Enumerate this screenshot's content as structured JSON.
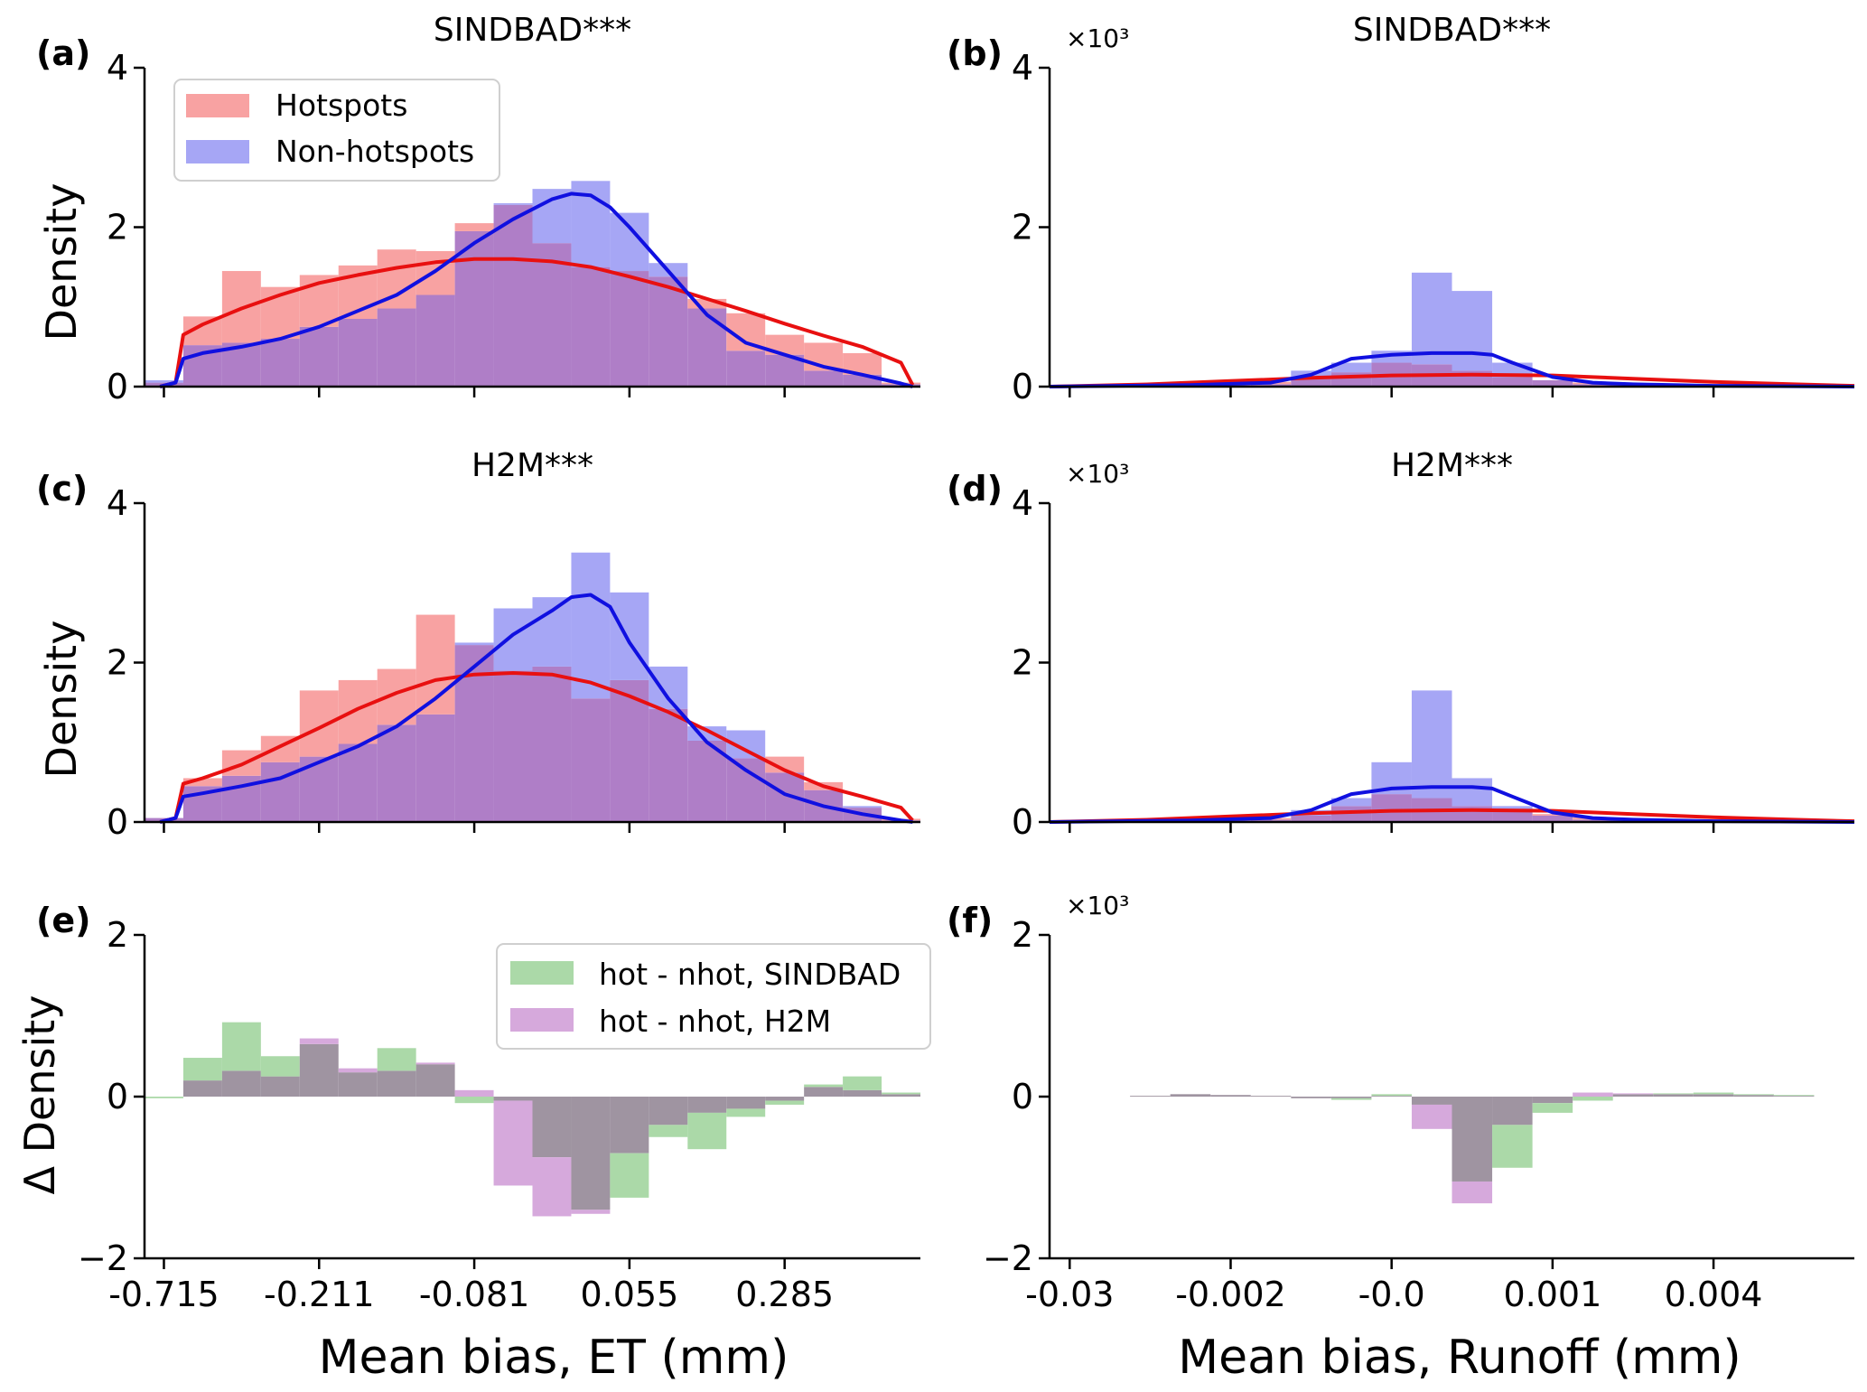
{
  "colors": {
    "hotspots": "#f8a2a2",
    "nonhotspots": "#a6a6f5",
    "overlap": "#af7ec7",
    "hot_line": "#e81010",
    "nonhot_line": "#1010e0",
    "diff_sindbad": "#abd9a8",
    "diff_h2m": "#d6a9dc",
    "diff_overlap": "#9f94a1"
  },
  "x_axis": {
    "et_ticks": [
      "-0.715",
      "-0.211",
      "-0.081",
      "0.055",
      "0.285"
    ],
    "runoff_ticks": [
      "-0.03",
      "-0.002",
      "-0.0",
      "0.001",
      "0.004"
    ],
    "et_label": "Mean bias, ET (mm)",
    "runoff_label": "Mean bias, Runoff (mm)"
  },
  "chart_data": [
    {
      "id": "a",
      "letter": "(a)",
      "title": "SINDBAD***",
      "type": "histogram+kde",
      "ylabel": "Density",
      "ylim": [
        0,
        4
      ],
      "yticks": [
        "0",
        "2",
        "4"
      ],
      "exponent": "",
      "xlim": [
        -0.5,
        19.5
      ],
      "xticks_at": [
        0,
        4,
        8,
        12,
        16
      ],
      "x_variable": "ET",
      "legend": [
        "Hotspots",
        "Non-hotspots"
      ],
      "bin_edges": [
        -0.5,
        0.5,
        1.5,
        2.5,
        3.5,
        4.5,
        5.5,
        6.5,
        7.5,
        8.5,
        9.5,
        10.5,
        11.5,
        12.5,
        13.5,
        14.5,
        15.5,
        16.5,
        17.5,
        18.5,
        19.5
      ],
      "series": [
        {
          "name": "Hotspots",
          "values": [
            0.05,
            0.88,
            1.45,
            1.25,
            1.4,
            1.52,
            1.72,
            1.7,
            2.05,
            2.28,
            1.8,
            1.5,
            1.45,
            1.38,
            1.1,
            0.92,
            0.65,
            0.55,
            0.42,
            0.05
          ]
        },
        {
          "name": "Non-hotspots",
          "values": [
            0.08,
            0.52,
            0.55,
            0.6,
            0.75,
            0.85,
            0.98,
            1.15,
            1.95,
            2.3,
            2.48,
            2.58,
            2.18,
            1.55,
            0.98,
            0.45,
            0.4,
            0.2,
            0.15,
            0.03
          ]
        }
      ],
      "kde": [
        {
          "name": "Hotspots",
          "x": [
            -0.1,
            0.3,
            0.5,
            1.0,
            2.0,
            3.0,
            4.0,
            5.0,
            6.0,
            7.0,
            8.0,
            9.0,
            10.0,
            11.0,
            12.0,
            13.0,
            14.0,
            15.0,
            16.0,
            17.0,
            18.0,
            19.0,
            19.3
          ],
          "y": [
            0.0,
            0.05,
            0.65,
            0.78,
            0.98,
            1.15,
            1.3,
            1.4,
            1.49,
            1.56,
            1.6,
            1.6,
            1.57,
            1.5,
            1.38,
            1.25,
            1.1,
            0.95,
            0.79,
            0.64,
            0.5,
            0.3,
            0.02
          ]
        },
        {
          "name": "Non-hotspots",
          "x": [
            -0.1,
            0.3,
            0.5,
            1.0,
            2.0,
            3.0,
            4.0,
            5.0,
            6.0,
            7.0,
            8.0,
            9.0,
            10.0,
            10.5,
            11.0,
            11.5,
            12.0,
            13.0,
            14.0,
            15.0,
            16.0,
            17.0,
            18.0,
            19.0,
            19.3
          ],
          "y": [
            0.0,
            0.05,
            0.35,
            0.42,
            0.5,
            0.6,
            0.75,
            0.95,
            1.15,
            1.45,
            1.8,
            2.1,
            2.35,
            2.42,
            2.4,
            2.25,
            2.0,
            1.45,
            0.9,
            0.55,
            0.4,
            0.25,
            0.15,
            0.04,
            0.0
          ]
        }
      ]
    },
    {
      "id": "b",
      "letter": "(b)",
      "title": "SINDBAD***",
      "type": "histogram+kde",
      "ylabel": "",
      "ylim": [
        0,
        4
      ],
      "yticks": [
        "0",
        "2",
        "4"
      ],
      "exponent": "×10³",
      "xlim": [
        -0.5,
        19.5
      ],
      "xticks_at": [
        0,
        4,
        8,
        12,
        16
      ],
      "x_variable": "Runoff",
      "legend": [],
      "bin_edges": [
        -0.5,
        0.5,
        1.5,
        2.5,
        3.5,
        4.5,
        5.5,
        6.5,
        7.5,
        8.5,
        9.5,
        10.5,
        11.5,
        12.5,
        13.5,
        14.5,
        15.5,
        16.5,
        17.5,
        18.5,
        19.5
      ],
      "series": [
        {
          "name": "Hotspots",
          "values": [
            0.005,
            0.015,
            0.02,
            0.03,
            0.04,
            0.06,
            0.1,
            0.18,
            0.3,
            0.28,
            0.2,
            0.12,
            0.08,
            0.05,
            0.035,
            0.025,
            0.015,
            0.01,
            0.005,
            0.002
          ]
        },
        {
          "name": "Non-hotspots",
          "values": [
            0.0,
            0.005,
            0.01,
            0.015,
            0.02,
            0.03,
            0.2,
            0.3,
            0.45,
            1.43,
            1.2,
            0.3,
            0.08,
            0.03,
            0.02,
            0.01,
            0.005,
            0.003,
            0.002,
            0.0
          ]
        }
      ],
      "kde": [
        {
          "name": "Hotspots",
          "x": [
            -0.5,
            2,
            4,
            6,
            8,
            10,
            12,
            14,
            16,
            18,
            19.5
          ],
          "y": [
            0.0,
            0.03,
            0.07,
            0.11,
            0.14,
            0.15,
            0.14,
            0.1,
            0.06,
            0.03,
            0.01
          ]
        },
        {
          "name": "Non-hotspots",
          "x": [
            -0.5,
            3,
            5,
            6,
            6.5,
            7,
            8,
            9,
            10,
            10.5,
            11,
            12,
            13,
            14,
            16,
            19.5
          ],
          "y": [
            0.0,
            0.02,
            0.05,
            0.15,
            0.25,
            0.35,
            0.4,
            0.42,
            0.42,
            0.4,
            0.3,
            0.12,
            0.05,
            0.03,
            0.01,
            0.0
          ]
        }
      ]
    },
    {
      "id": "c",
      "letter": "(c)",
      "title": "H2M***",
      "type": "histogram+kde",
      "ylabel": "Density",
      "ylim": [
        0,
        4
      ],
      "yticks": [
        "0",
        "2",
        "4"
      ],
      "exponent": "",
      "xlim": [
        -0.5,
        19.5
      ],
      "xticks_at": [
        0,
        4,
        8,
        12,
        16
      ],
      "x_variable": "ET",
      "legend": [],
      "bin_edges": [
        -0.5,
        0.5,
        1.5,
        2.5,
        3.5,
        4.5,
        5.5,
        6.5,
        7.5,
        8.5,
        9.5,
        10.5,
        11.5,
        12.5,
        13.5,
        14.5,
        15.5,
        16.5,
        17.5,
        18.5,
        19.5
      ],
      "series": [
        {
          "name": "Hotspots",
          "values": [
            0.05,
            0.55,
            0.9,
            1.08,
            1.65,
            1.78,
            1.92,
            2.6,
            2.22,
            1.9,
            1.95,
            1.55,
            1.78,
            1.42,
            1.02,
            0.8,
            0.82,
            0.5,
            0.18,
            0.04
          ]
        },
        {
          "name": "Non-hotspots",
          "values": [
            0.05,
            0.45,
            0.58,
            0.75,
            0.82,
            0.98,
            1.22,
            1.35,
            2.25,
            2.68,
            2.82,
            3.38,
            2.88,
            1.95,
            1.2,
            1.15,
            0.62,
            0.4,
            0.2,
            0.02
          ]
        }
      ],
      "kde": [
        {
          "name": "Hotspots",
          "x": [
            -0.1,
            0.3,
            0.5,
            1.0,
            2.0,
            3.0,
            4.0,
            5.0,
            6.0,
            7.0,
            8.0,
            9.0,
            10.0,
            11.0,
            12.0,
            13.0,
            14.0,
            15.0,
            16.0,
            17.0,
            18.0,
            19.0,
            19.3
          ],
          "y": [
            0.0,
            0.05,
            0.48,
            0.55,
            0.72,
            0.95,
            1.18,
            1.42,
            1.62,
            1.78,
            1.85,
            1.87,
            1.85,
            1.75,
            1.58,
            1.38,
            1.15,
            0.9,
            0.65,
            0.45,
            0.32,
            0.18,
            0.02
          ]
        },
        {
          "name": "Non-hotspots",
          "x": [
            -0.1,
            0.3,
            0.5,
            1.0,
            2.0,
            3.0,
            4.0,
            5.0,
            6.0,
            7.0,
            8.0,
            9.0,
            10.0,
            10.5,
            11.0,
            11.5,
            12.0,
            13.0,
            14.0,
            15.0,
            16.0,
            17.0,
            18.0,
            19.0,
            19.3
          ],
          "y": [
            0.0,
            0.05,
            0.32,
            0.36,
            0.45,
            0.55,
            0.75,
            0.95,
            1.2,
            1.55,
            1.95,
            2.35,
            2.65,
            2.82,
            2.85,
            2.7,
            2.25,
            1.55,
            1.0,
            0.65,
            0.35,
            0.2,
            0.1,
            0.02,
            0.0
          ]
        }
      ]
    },
    {
      "id": "d",
      "letter": "(d)",
      "title": "H2M***",
      "type": "histogram+kde",
      "ylabel": "",
      "ylim": [
        0,
        4
      ],
      "yticks": [
        "0",
        "2",
        "4"
      ],
      "exponent": "×10³",
      "xlim": [
        -0.5,
        19.5
      ],
      "xticks_at": [
        0,
        4,
        8,
        12,
        16
      ],
      "x_variable": "Runoff",
      "legend": [],
      "bin_edges": [
        -0.5,
        0.5,
        1.5,
        2.5,
        3.5,
        4.5,
        5.5,
        6.5,
        7.5,
        8.5,
        9.5,
        10.5,
        11.5,
        12.5,
        13.5,
        14.5,
        15.5,
        16.5,
        17.5,
        18.5,
        19.5
      ],
      "series": [
        {
          "name": "Hotspots",
          "values": [
            0.005,
            0.015,
            0.02,
            0.03,
            0.04,
            0.05,
            0.08,
            0.2,
            0.35,
            0.3,
            0.2,
            0.15,
            0.1,
            0.06,
            0.04,
            0.03,
            0.02,
            0.01,
            0.005,
            0.002
          ]
        },
        {
          "name": "Non-hotspots",
          "values": [
            0.0,
            0.005,
            0.01,
            0.015,
            0.02,
            0.03,
            0.15,
            0.3,
            0.75,
            1.65,
            0.55,
            0.2,
            0.08,
            0.03,
            0.02,
            0.01,
            0.005,
            0.003,
            0.002,
            0.0
          ]
        }
      ],
      "kde": [
        {
          "name": "Hotspots",
          "x": [
            -0.5,
            2,
            4,
            6,
            8,
            10,
            12,
            14,
            16,
            18,
            19.5
          ],
          "y": [
            0.0,
            0.03,
            0.07,
            0.11,
            0.14,
            0.15,
            0.14,
            0.1,
            0.06,
            0.03,
            0.01
          ]
        },
        {
          "name": "Non-hotspots",
          "x": [
            -0.5,
            3,
            5,
            6,
            6.5,
            7,
            8,
            9,
            10,
            10.5,
            11,
            12,
            13,
            14,
            16,
            19.5
          ],
          "y": [
            0.0,
            0.02,
            0.05,
            0.15,
            0.25,
            0.35,
            0.42,
            0.44,
            0.44,
            0.42,
            0.32,
            0.12,
            0.05,
            0.03,
            0.01,
            0.0
          ]
        }
      ]
    },
    {
      "id": "e",
      "letter": "(e)",
      "title": "",
      "type": "difference-histogram",
      "ylabel": "Δ Density",
      "ylim": [
        -2,
        2
      ],
      "yticks": [
        "−2",
        "0",
        "2"
      ],
      "exponent": "",
      "xlim": [
        -0.5,
        19.5
      ],
      "xticks_at": [
        0,
        4,
        8,
        12,
        16
      ],
      "x_variable": "ET",
      "legend": [
        "hot - nhot, SINDBAD",
        "hot - nhot, H2M"
      ],
      "bin_edges": [
        -0.5,
        0.5,
        1.5,
        2.5,
        3.5,
        4.5,
        5.5,
        6.5,
        7.5,
        8.5,
        9.5,
        10.5,
        11.5,
        12.5,
        13.5,
        14.5,
        15.5,
        16.5,
        17.5,
        18.5,
        19.5
      ],
      "series": [
        {
          "name": "hot - nhot, SINDBAD",
          "values": [
            -0.02,
            0.48,
            0.92,
            0.5,
            0.65,
            0.3,
            0.6,
            0.4,
            -0.08,
            -0.05,
            -0.75,
            -1.4,
            -1.25,
            -0.5,
            -0.65,
            -0.25,
            -0.1,
            0.15,
            0.25,
            0.05
          ]
        },
        {
          "name": "hot - nhot, H2M",
          "values": [
            0.0,
            0.2,
            0.32,
            0.25,
            0.72,
            0.35,
            0.32,
            0.42,
            0.08,
            -1.1,
            -1.48,
            -1.45,
            -0.7,
            -0.35,
            -0.2,
            -0.15,
            -0.05,
            0.12,
            0.08,
            0.03
          ]
        }
      ]
    },
    {
      "id": "f",
      "letter": "(f)",
      "title": "",
      "type": "difference-histogram",
      "ylabel": "",
      "ylim": [
        -2,
        2
      ],
      "yticks": [
        "−2",
        "0",
        "2"
      ],
      "exponent": "×10³",
      "xlim": [
        -0.5,
        19.5
      ],
      "xticks_at": [
        0,
        4,
        8,
        12,
        16
      ],
      "x_variable": "Runoff",
      "legend": [],
      "bin_edges": [
        -0.5,
        0.5,
        1.5,
        2.5,
        3.5,
        4.5,
        5.5,
        6.5,
        7.5,
        8.5,
        9.5,
        10.5,
        11.5,
        12.5,
        13.5,
        14.5,
        15.5,
        16.5,
        17.5,
        18.5,
        19.5
      ],
      "series": [
        {
          "name": "hot - nhot, SINDBAD",
          "values": [
            0.0,
            0.0,
            0.01,
            0.03,
            0.02,
            0.01,
            -0.02,
            -0.04,
            0.03,
            -0.1,
            -1.05,
            -0.88,
            -0.2,
            -0.05,
            0.03,
            0.04,
            0.05,
            0.03,
            0.02,
            0.0
          ]
        },
        {
          "name": "hot - nhot, H2M",
          "values": [
            0.0,
            0.0,
            0.01,
            0.03,
            0.02,
            0.01,
            -0.02,
            -0.02,
            0.01,
            -0.4,
            -1.32,
            -0.35,
            -0.08,
            0.05,
            0.04,
            0.03,
            0.03,
            0.02,
            0.01,
            0.0
          ]
        }
      ]
    }
  ]
}
